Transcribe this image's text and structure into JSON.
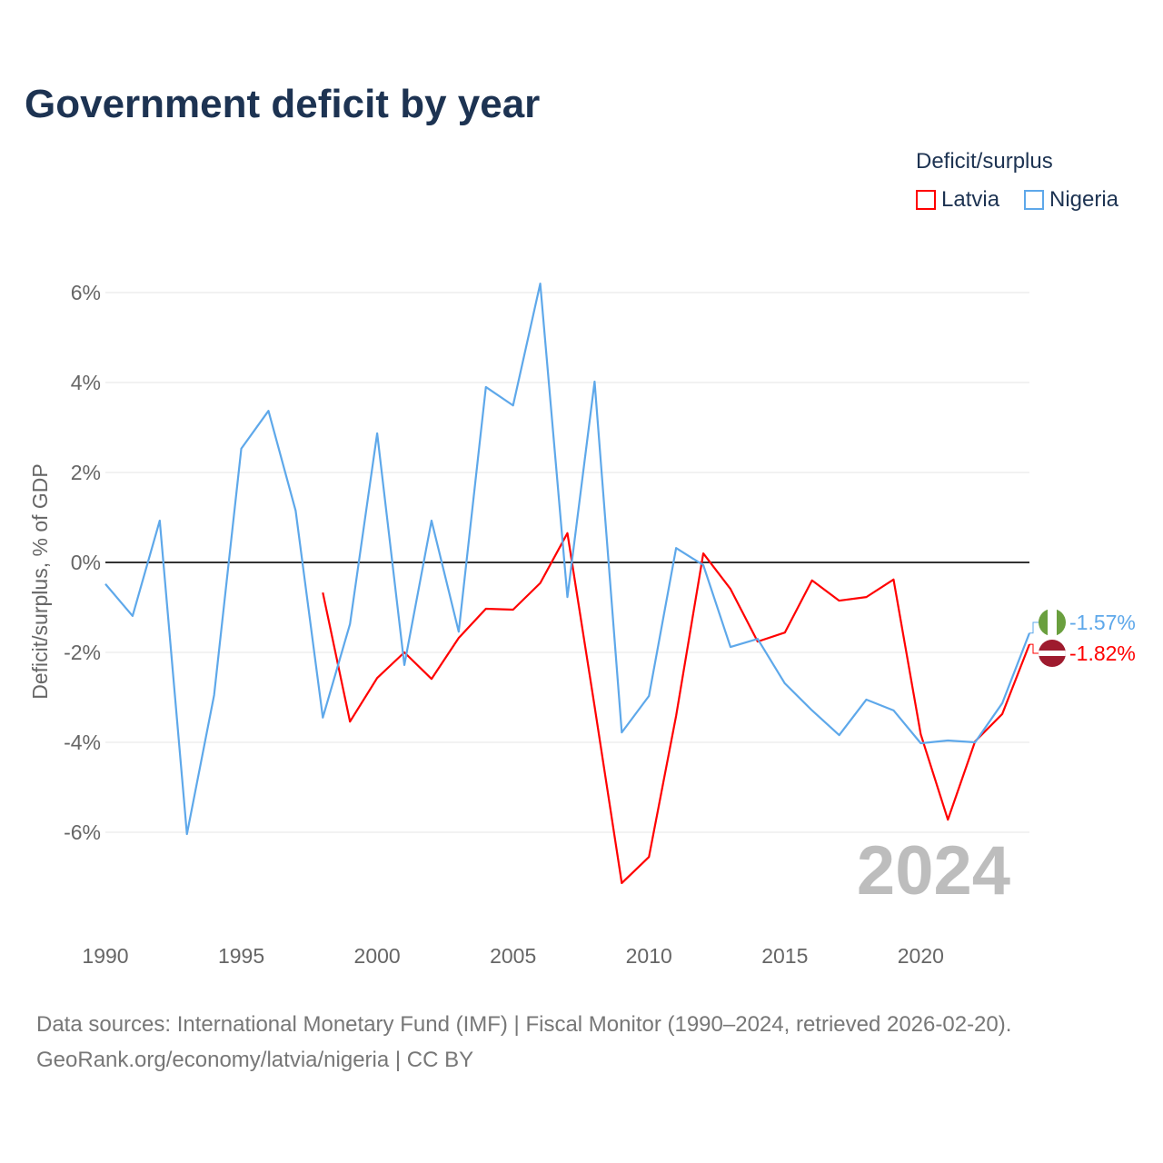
{
  "chart_data": {
    "type": "line",
    "title": "Government deficit by year",
    "ylabel": "Deficit/surplus, % of GDP",
    "xlabel": "",
    "xlim": [
      1990,
      2024
    ],
    "ylim": [
      -8,
      6.5
    ],
    "x_ticks": [
      1990,
      1995,
      2000,
      2005,
      2010,
      2015,
      2020
    ],
    "y_ticks": [
      -6,
      -4,
      -2,
      0,
      2,
      4,
      6
    ],
    "y_tick_labels": [
      "-6%",
      "-4%",
      "-2%",
      "0%",
      "2%",
      "4%",
      "6%"
    ],
    "grid": true,
    "legend_title": "Deficit/surplus",
    "legend_position": "top-right",
    "year_watermark": "2024",
    "series": [
      {
        "name": "Latvia",
        "color": "#ff0000",
        "end_label": "-1.82%",
        "x": [
          1998,
          1999,
          2000,
          2001,
          2002,
          2003,
          2004,
          2005,
          2006,
          2007,
          2008,
          2009,
          2010,
          2011,
          2012,
          2013,
          2014,
          2015,
          2016,
          2017,
          2018,
          2019,
          2020,
          2021,
          2022,
          2023,
          2024
        ],
        "values": [
          -0.67,
          -3.54,
          -2.57,
          -2.0,
          -2.59,
          -1.68,
          -1.03,
          -1.05,
          -0.46,
          0.65,
          -3.2,
          -7.13,
          -6.55,
          -3.41,
          0.2,
          -0.59,
          -1.76,
          -1.56,
          -0.4,
          -0.85,
          -0.77,
          -0.38,
          -3.82,
          -5.72,
          -3.98,
          -3.37,
          -1.82
        ]
      },
      {
        "name": "Nigeria",
        "color": "#5ea8ea",
        "end_label": "-1.57%",
        "x": [
          1990,
          1991,
          1992,
          1993,
          1994,
          1995,
          1996,
          1997,
          1998,
          1999,
          2000,
          2001,
          2002,
          2003,
          2004,
          2005,
          2006,
          2007,
          2008,
          2009,
          2010,
          2011,
          2012,
          2013,
          2014,
          2015,
          2016,
          2017,
          2018,
          2019,
          2020,
          2021,
          2022,
          2023,
          2024
        ],
        "values": [
          -0.48,
          -1.19,
          0.93,
          -6.04,
          -2.95,
          2.53,
          3.37,
          1.15,
          -3.45,
          -1.37,
          2.87,
          -2.28,
          0.93,
          -1.54,
          3.9,
          3.49,
          6.2,
          -0.77,
          4.02,
          -3.78,
          -2.97,
          0.32,
          -0.06,
          -1.88,
          -1.7,
          -2.69,
          -3.29,
          -3.84,
          -3.05,
          -3.29,
          -4.02,
          -3.96,
          -4.0,
          -3.13,
          -1.57
        ]
      }
    ]
  },
  "source_line1": "Data sources: International Monetary Fund (IMF) | Fiscal Monitor (1990–2024, retrieved 2026-02-20).",
  "source_line2": "GeoRank.org/economy/latvia/nigeria | CC BY"
}
